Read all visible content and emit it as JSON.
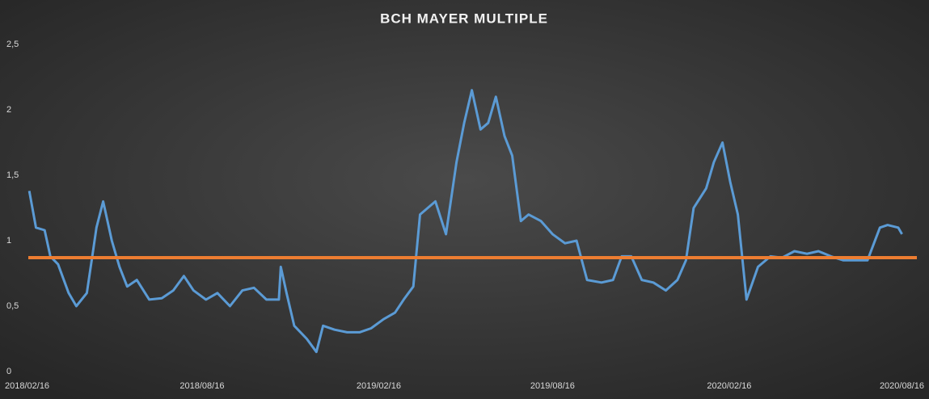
{
  "chart_data": {
    "type": "line",
    "title": "BCH MAYER MULTIPLE",
    "x": [
      "2018/02/17",
      "2018/02/24",
      "2018/03/05",
      "2018/03/11",
      "2018/03/19",
      "2018/03/30",
      "2018/04/07",
      "2018/04/18",
      "2018/04/24",
      "2018/04/28",
      "2018/05/05",
      "2018/05/14",
      "2018/05/22",
      "2018/05/30",
      "2018/06/09",
      "2018/06/22",
      "2018/07/05",
      "2018/07/17",
      "2018/07/28",
      "2018/08/07",
      "2018/08/20",
      "2018/09/01",
      "2018/09/14",
      "2018/09/27",
      "2018/10/09",
      "2018/10/22",
      "2018/11/04",
      "2018/11/06",
      "2018/11/12",
      "2018/11/20",
      "2018/12/03",
      "2018/12/13",
      "2018/12/20",
      "2019/01/01",
      "2019/01/14",
      "2019/01/27",
      "2019/02/08",
      "2019/02/21",
      "2019/03/05",
      "2019/03/14",
      "2019/03/24",
      "2019/03/31",
      "2019/04/08",
      "2019/04/16",
      "2019/04/27",
      "2019/05/08",
      "2019/05/16",
      "2019/05/24",
      "2019/06/02",
      "2019/06/10",
      "2019/06/18",
      "2019/06/27",
      "2019/07/05",
      "2019/07/14",
      "2019/07/22",
      "2019/08/04",
      "2019/08/16",
      "2019/08/29",
      "2019/09/10",
      "2019/09/21",
      "2019/10/06",
      "2019/10/18",
      "2019/10/27",
      "2019/11/06",
      "2019/11/17",
      "2019/11/29",
      "2019/12/12",
      "2019/12/24",
      "2020/01/02",
      "2020/01/10",
      "2020/01/23",
      "2020/01/31",
      "2020/02/09",
      "2020/02/17",
      "2020/02/25",
      "2020/03/05",
      "2020/03/17",
      "2020/03/30",
      "2020/04/11",
      "2020/04/24",
      "2020/05/07",
      "2020/05/19",
      "2020/06/01",
      "2020/06/14",
      "2020/06/26",
      "2020/07/09",
      "2020/07/22",
      "2020/07/30",
      "2020/08/10",
      "2020/08/14"
    ],
    "series": [
      {
        "color": "#5b9bd5",
        "values": [
          1.38,
          1.1,
          1.08,
          0.88,
          0.82,
          0.6,
          0.5,
          0.6,
          0.9,
          1.1,
          1.3,
          1.0,
          0.8,
          0.65,
          0.7,
          0.55,
          0.56,
          0.62,
          0.73,
          0.62,
          0.55,
          0.6,
          0.5,
          0.62,
          0.64,
          0.55,
          0.55,
          0.8,
          0.6,
          0.35,
          0.25,
          0.15,
          0.35,
          0.32,
          0.3,
          0.3,
          0.33,
          0.4,
          0.45,
          0.55,
          0.65,
          1.2,
          1.25,
          1.3,
          1.05,
          1.6,
          1.9,
          2.15,
          1.85,
          1.9,
          2.1,
          1.8,
          1.65,
          1.15,
          1.2,
          1.15,
          1.05,
          0.98,
          1.0,
          0.7,
          0.68,
          0.7,
          0.88,
          0.88,
          0.7,
          0.68,
          0.62,
          0.7,
          0.85,
          1.25,
          1.4,
          1.6,
          1.75,
          1.45,
          1.2,
          0.55,
          0.8,
          0.88,
          0.87,
          0.92,
          0.9,
          0.92,
          0.88,
          0.85,
          0.85,
          0.85,
          1.1,
          1.12,
          1.1,
          1.05
        ]
      }
    ],
    "reference_line": {
      "value": 0.87,
      "color": "#ed7d31"
    },
    "xlim": [
      "2018/02/16",
      "2020/08/16"
    ],
    "xticks": [
      "2018/02/16",
      "2018/08/16",
      "2019/02/16",
      "2019/08/16",
      "2020/02/16",
      "2020/08/16"
    ],
    "ylim": [
      0,
      2.5
    ],
    "yticks": [
      0,
      {
        "value": 0.5,
        "label": "0,5"
      },
      1,
      {
        "value": 1.5,
        "label": "1,5"
      },
      2,
      {
        "value": 2.5,
        "label": "2,5"
      }
    ],
    "grid": false
  }
}
